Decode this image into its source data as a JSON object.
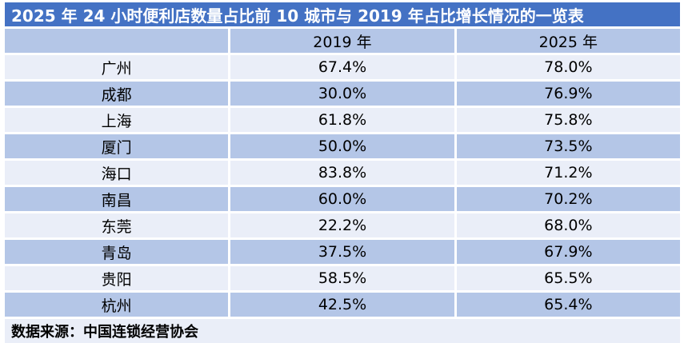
{
  "title": "2025 年 24 小时便利店数量占比前 10 城市与 2019 年占比增长情况的一览表",
  "footer": "数据来源：中国连锁经营协会",
  "colors": {
    "title_bar": "#4472C4",
    "band_dark": "#B4C6E7",
    "band_light": "#EAEEF8",
    "title_text": "#FFFFFF",
    "cell_text": "#000000"
  },
  "table": {
    "columns": [
      "",
      "2019 年",
      "2025 年"
    ],
    "rows": [
      {
        "city": "广州",
        "y2019": "67.4%",
        "y2025": "78.0%"
      },
      {
        "city": "成都",
        "y2019": "30.0%",
        "y2025": "76.9%"
      },
      {
        "city": "上海",
        "y2019": "61.8%",
        "y2025": "75.8%"
      },
      {
        "city": "厦门",
        "y2019": "50.0%",
        "y2025": "73.5%"
      },
      {
        "city": "海口",
        "y2019": "83.8%",
        "y2025": "71.2%"
      },
      {
        "city": "南昌",
        "y2019": "60.0%",
        "y2025": "70.2%"
      },
      {
        "city": "东莞",
        "y2019": "22.2%",
        "y2025": "68.0%"
      },
      {
        "city": "青岛",
        "y2019": "37.5%",
        "y2025": "67.9%"
      },
      {
        "city": "贵阳",
        "y2019": "58.5%",
        "y2025": "65.5%"
      },
      {
        "city": "杭州",
        "y2019": "42.5%",
        "y2025": "65.4%"
      }
    ]
  },
  "chart_data": {
    "type": "table",
    "title": "2025 年 24 小时便利店数量占比前 10 城市与 2019 年占比增长情况的一览表",
    "categories": [
      "广州",
      "成都",
      "上海",
      "厦门",
      "海口",
      "南昌",
      "东莞",
      "青岛",
      "贵阳",
      "杭州"
    ],
    "series": [
      {
        "name": "2019 年",
        "values": [
          67.4,
          30.0,
          61.8,
          50.0,
          83.8,
          60.0,
          22.2,
          37.5,
          58.5,
          42.5
        ]
      },
      {
        "name": "2025 年",
        "values": [
          78.0,
          76.9,
          75.8,
          73.5,
          71.2,
          70.2,
          68.0,
          67.9,
          65.5,
          65.4
        ]
      }
    ],
    "unit": "%",
    "source_note": "数据来源：中国连锁经营协会"
  }
}
